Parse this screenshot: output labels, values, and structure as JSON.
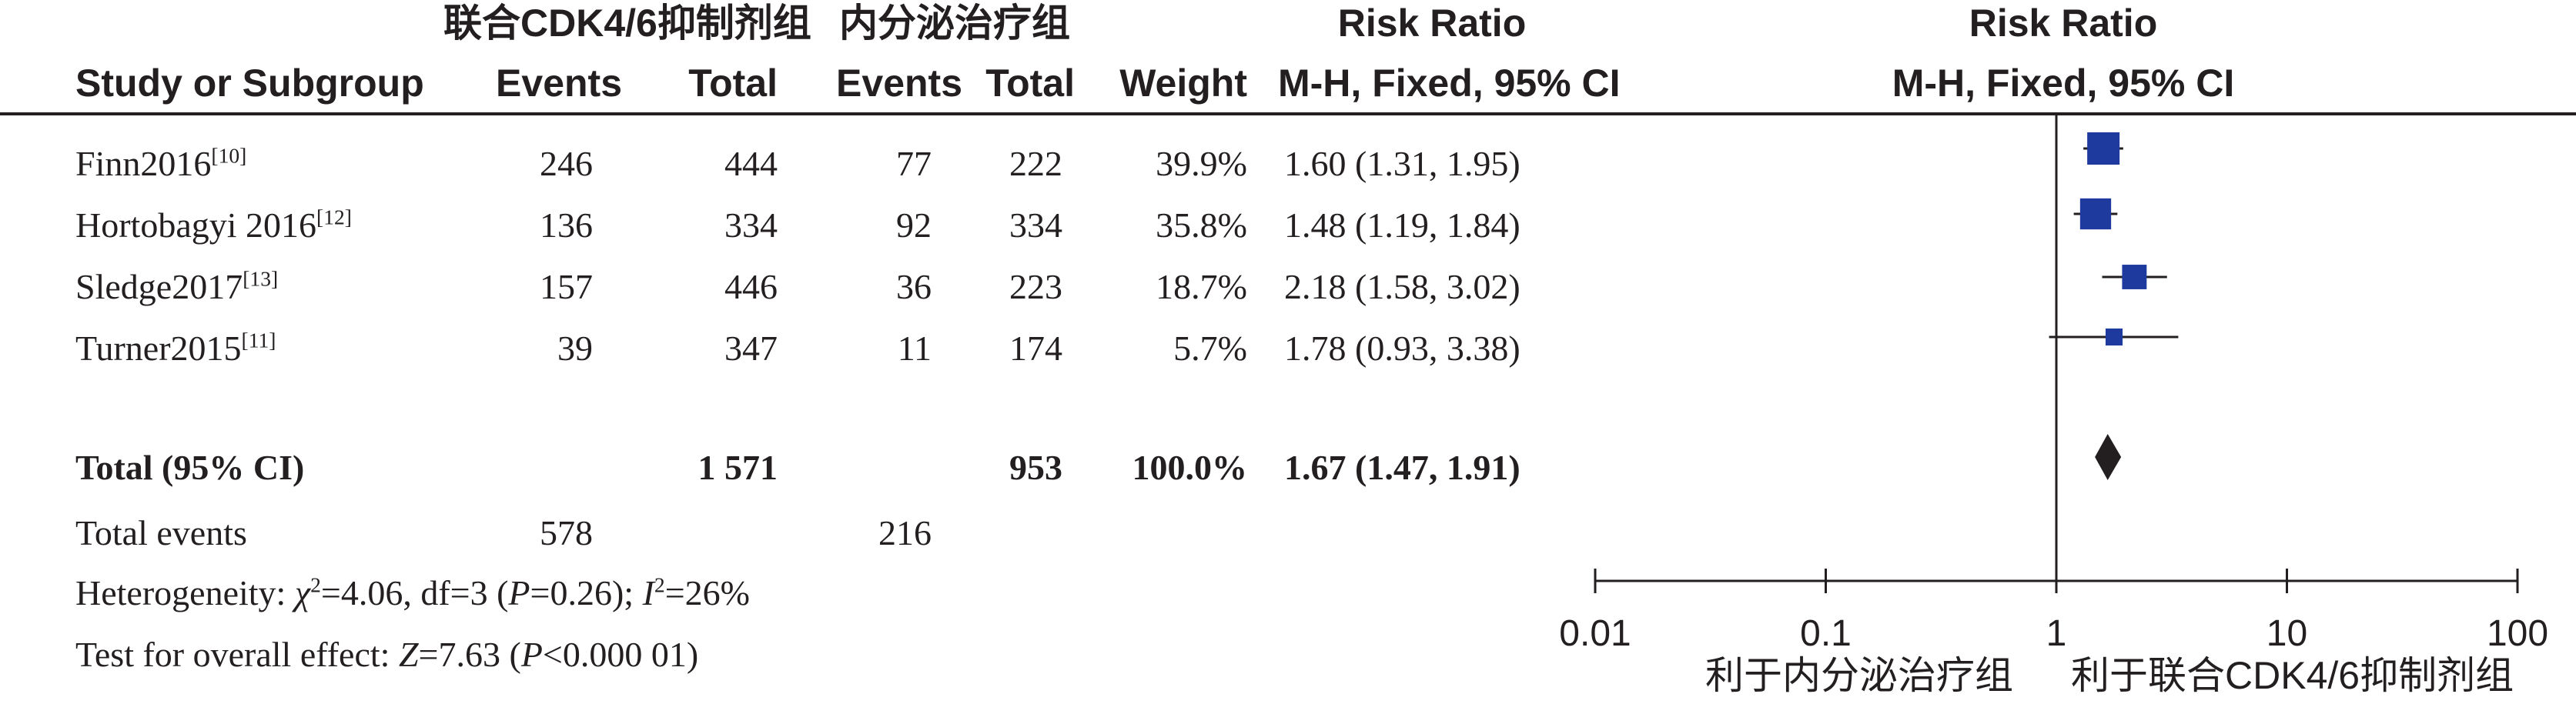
{
  "header": {
    "group1": "联合CDK4/6抑制剂组",
    "group2": "内分泌治疗组",
    "risk_ratio": "Risk Ratio",
    "risk_ratio_plot": "Risk Ratio",
    "study_col": "Study or Subgroup",
    "events1": "Events",
    "total1": "Total",
    "events2": "Events",
    "total2": "Total",
    "weight": "Weight",
    "method": "M-H, Fixed, 95% CI",
    "method_plot": "M-H, Fixed, 95% CI"
  },
  "studies": [
    {
      "name": "Finn2016",
      "ref": "[10]",
      "e1": "246",
      "t1": "444",
      "e2": "77",
      "t2": "222",
      "weight": "39.9%",
      "ci": "1.60 (1.31, 1.95)"
    },
    {
      "name": "Hortobagyi 2016",
      "ref": "[12]",
      "e1": "136",
      "t1": "334",
      "e2": "92",
      "t2": "334",
      "weight": "35.8%",
      "ci": "1.48 (1.19, 1.84)"
    },
    {
      "name": "Sledge2017",
      "ref": "[13]",
      "e1": "157",
      "t1": "446",
      "e2": "36",
      "t2": "223",
      "weight": "18.7%",
      "ci": "2.18 (1.58, 3.02)"
    },
    {
      "name": "Turner2015",
      "ref": "[11]",
      "e1": "39",
      "t1": "347",
      "e2": "11",
      "t2": "174",
      "weight": "5.7%",
      "ci": "1.78 (0.93, 3.38)"
    }
  ],
  "total": {
    "label": "Total (95% CI)",
    "t1": "1 571",
    "t2": "953",
    "weight": "100.0%",
    "ci": "1.67 (1.47, 1.91)"
  },
  "total_events": {
    "label": "Total events",
    "e1": "578",
    "e2": "216"
  },
  "heterogeneity": {
    "prefix": "Heterogeneity: ",
    "chi_sym": "χ",
    "chi_text": "=4.06, df=3 (",
    "p_sym": "P",
    "p_text": "=0.26); ",
    "i_sym": "I",
    "i_text": "=26%"
  },
  "overall": {
    "prefix": "Test for overall effect: ",
    "z_sym": "Z",
    "z_text": "=7.63 (",
    "p_sym": "P",
    "p_text": "<0.000 01)"
  },
  "axis": {
    "left_label": "利于内分泌治疗组",
    "right_label": "利于联合CDK4/6抑制剂组"
  },
  "chart_data": {
    "type": "forest",
    "scale": "log",
    "xlim": [
      0.01,
      100
    ],
    "ticks": [
      "0.01",
      "0.1",
      "1",
      "10",
      "100"
    ],
    "tick_values": [
      0.01,
      0.1,
      1,
      10,
      100
    ],
    "reference_line": 1,
    "marker_color": "#1f3a9e",
    "studies": [
      {
        "name": "Finn2016",
        "rr": 1.6,
        "lo": 1.31,
        "hi": 1.95,
        "weight": 39.9
      },
      {
        "name": "Hortobagyi 2016",
        "rr": 1.48,
        "lo": 1.19,
        "hi": 1.84,
        "weight": 35.8
      },
      {
        "name": "Sledge2017",
        "rr": 2.18,
        "lo": 1.58,
        "hi": 3.02,
        "weight": 18.7
      },
      {
        "name": "Turner2015",
        "rr": 1.78,
        "lo": 0.93,
        "hi": 3.38,
        "weight": 5.7
      }
    ],
    "total": {
      "rr": 1.67,
      "lo": 1.47,
      "hi": 1.91
    }
  }
}
